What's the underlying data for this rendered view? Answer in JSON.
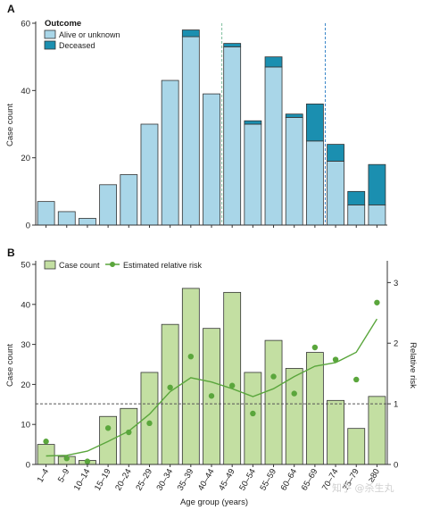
{
  "chart_data": [
    {
      "panel": "A",
      "type": "bar",
      "stacked": true,
      "legend_title": "Outcome",
      "legend_position": "top-left",
      "ylabel": "Case count",
      "ylim": [
        0,
        60
      ],
      "yticks": [
        0,
        20,
        40,
        60
      ],
      "categories": [
        "1–4",
        "5–9",
        "10–14",
        "15–19",
        "20–24",
        "25–29",
        "30–34",
        "35–39",
        "40–44",
        "45–49",
        "50–54",
        "55–59",
        "60–64",
        "65–69",
        "70–74",
        "75–79",
        "≥80"
      ],
      "series": [
        {
          "name": "Alive or unknown",
          "color": "#a9d6e8",
          "values": [
            7,
            4,
            2,
            12,
            15,
            30,
            43,
            56,
            39,
            53,
            30,
            47,
            32,
            25,
            19,
            6,
            6
          ]
        },
        {
          "name": "Deceased",
          "color": "#1b8fb0",
          "values": [
            0,
            0,
            0,
            0,
            0,
            0,
            0,
            2,
            0,
            1,
            1,
            3,
            1,
            11,
            5,
            4,
            12
          ]
        }
      ],
      "reference_lines": [
        {
          "between": [
            "40–44",
            "45–49"
          ],
          "style": "dashed",
          "color": "#7fbf9f"
        },
        {
          "between": [
            "65–69",
            "70–74"
          ],
          "style": "dashed",
          "color": "#3b87c9"
        }
      ]
    },
    {
      "panel": "B",
      "type": "bar",
      "categories": [
        "1–4",
        "5–9",
        "10–14",
        "15–19",
        "20–24",
        "25–29",
        "30–34",
        "35–39",
        "40–44",
        "45–49",
        "50–54",
        "55–59",
        "60–64",
        "65–69",
        "70–74",
        "75–79",
        "≥80"
      ],
      "xlabel": "Age group (years)",
      "ylabel": "Case count",
      "ylim": [
        0,
        50
      ],
      "yticks": [
        0,
        10,
        20,
        30,
        40,
        50
      ],
      "y2label": "Relative risk",
      "y2lim": [
        0,
        3.3
      ],
      "y2ticks": [
        0,
        1,
        2,
        3
      ],
      "legend_position": "top-left",
      "reference_line": {
        "y2": 1,
        "style": "dashed",
        "color": "#555555"
      },
      "series": [
        {
          "name": "Case count",
          "kind": "bar",
          "axis": "left",
          "color": "#c3dfa2",
          "edge": "#333333",
          "values": [
            5,
            2,
            1,
            12,
            14,
            23,
            35,
            44,
            34,
            43,
            23,
            31,
            24,
            28,
            16,
            9,
            17
          ]
        },
        {
          "name": "Estimated relative risk",
          "kind": "points",
          "axis": "right",
          "color": "#5aa63c",
          "values": [
            0.38,
            0.1,
            0.05,
            0.6,
            0.53,
            0.68,
            1.27,
            1.78,
            1.13,
            1.3,
            0.84,
            1.45,
            1.17,
            1.93,
            1.73,
            1.4,
            2.67
          ]
        },
        {
          "kind": "trend-line",
          "axis": "right",
          "color": "#5aa63c",
          "values": [
            0.14,
            0.15,
            0.22,
            0.38,
            0.55,
            0.83,
            1.2,
            1.43,
            1.36,
            1.25,
            1.12,
            1.25,
            1.45,
            1.62,
            1.68,
            1.85,
            2.4
          ]
        }
      ]
    }
  ],
  "watermark": "知乎 @杀生丸"
}
